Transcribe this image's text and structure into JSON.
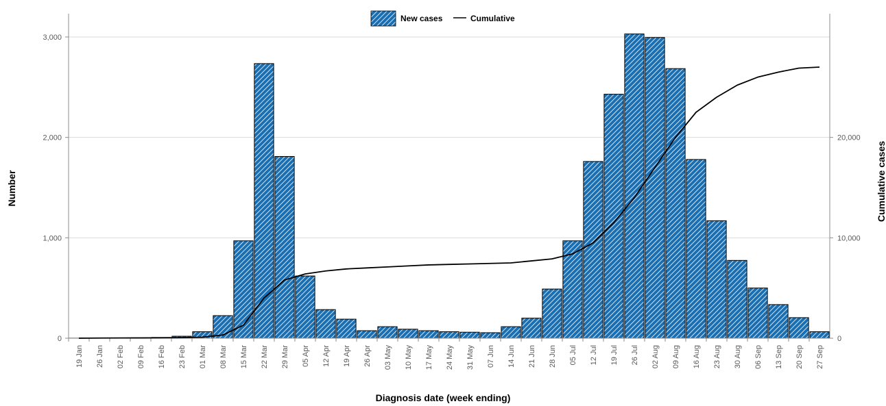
{
  "chart_data": {
    "type": "bar",
    "categories": [
      "19 Jan",
      "26 Jan",
      "02 Feb",
      "09 Feb",
      "16 Feb",
      "23 Feb",
      "01 Mar",
      "08 Mar",
      "15 Mar",
      "22 Mar",
      "29 Mar",
      "05 Apr",
      "12 Apr",
      "19 Apr",
      "26 Apr",
      "03 May",
      "10 May",
      "17 May",
      "24 May",
      "31 May",
      "07 Jun",
      "14 Jun",
      "21 Jun",
      "28 Jun",
      "05 Jul",
      "12 Jul",
      "19 Jul",
      "26 Jul",
      "02 Aug",
      "09 Aug",
      "16 Aug",
      "23 Aug",
      "30 Aug",
      "06 Sep",
      "13 Sep",
      "20 Sep",
      "27 Sep"
    ],
    "series": [
      {
        "name": "New cases",
        "axis": "left",
        "type": "bar",
        "values": [
          1,
          2,
          3,
          4,
          8,
          20,
          65,
          225,
          970,
          2735,
          1810,
          620,
          285,
          190,
          75,
          115,
          90,
          75,
          65,
          60,
          55,
          115,
          200,
          490,
          970,
          1760,
          2430,
          3030,
          2995,
          2685,
          1780,
          1170,
          775,
          500,
          335,
          205,
          65
        ]
      },
      {
        "name": "Cumulative",
        "axis": "right",
        "type": "line",
        "values": [
          5,
          15,
          25,
          30,
          40,
          60,
          100,
          320,
          1300,
          4000,
          5800,
          6400,
          6700,
          6900,
          7000,
          7100,
          7200,
          7300,
          7350,
          7400,
          7450,
          7500,
          7700,
          7900,
          8400,
          9500,
          11500,
          14000,
          17000,
          20000,
          22500,
          24000,
          25200,
          26000,
          26500,
          26900,
          27000
        ]
      }
    ],
    "xlabel": "Diagnosis date (week ending)",
    "ylabel": "Number",
    "ylabel_right": "Cumulative cases",
    "ylim": [
      0,
      3000
    ],
    "ylim_right": [
      0,
      30000
    ],
    "yticks": [
      0,
      1000,
      2000,
      3000
    ],
    "yticks_labels": [
      "0",
      "1,000",
      "2,000",
      "3,000"
    ],
    "yticks_right": [
      0,
      10000,
      20000
    ],
    "yticks_right_labels": [
      "0",
      "10,000",
      "20,000"
    ],
    "grid": true,
    "legend": "top-center",
    "colors": {
      "bar_fill": "#1a6fb3",
      "bar_stroke": "#000000",
      "hatch": "#ffffff",
      "line": "#000000",
      "grid": "#d9d9d9",
      "axis": "#8c8c8c"
    }
  }
}
